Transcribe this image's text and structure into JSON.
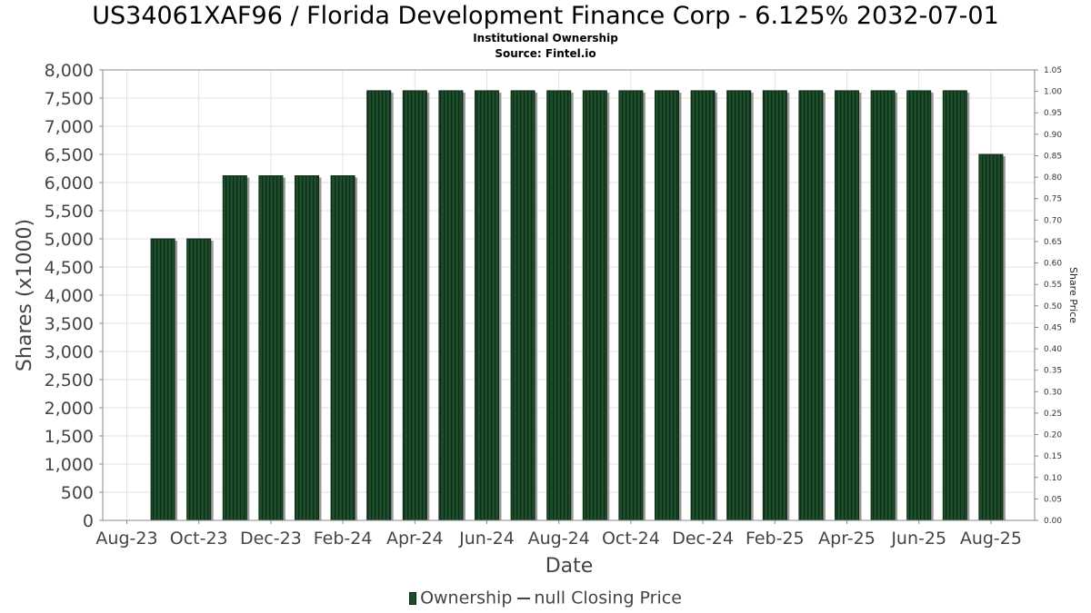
{
  "title": "US34061XAF96 / Florida Development Finance Corp - 6.125% 2032-07-01",
  "subtitle": "Institutional Ownership",
  "source": "Source: Fintel.io",
  "legend": {
    "ownership": "Ownership",
    "closing_price": "null Closing Price"
  },
  "colors": {
    "bar_fill": "#1e4d2b",
    "bar_stripe": "#0f2e18",
    "bar_shadow": "#9a9a9a",
    "grid": "#e2e2e2"
  },
  "chart_data": {
    "type": "bar",
    "xlabel": "Date",
    "ylabel": "Shares (x1000)",
    "y2label": "Share Price",
    "ylim": [
      0,
      8000
    ],
    "y2lim": [
      0,
      1.05
    ],
    "yticks": [
      "0",
      "500",
      "1,000",
      "1,500",
      "2,000",
      "2,500",
      "3,000",
      "3,500",
      "4,000",
      "4,500",
      "5,000",
      "5,500",
      "6,000",
      "6,500",
      "7,000",
      "7,500",
      "8,000"
    ],
    "y2ticks": [
      "0.00",
      "0.05",
      "0.10",
      "0.15",
      "0.20",
      "0.25",
      "0.30",
      "0.35",
      "0.40",
      "0.45",
      "0.50",
      "0.55",
      "0.60",
      "0.65",
      "0.70",
      "0.75",
      "0.80",
      "0.85",
      "0.90",
      "0.95",
      "1.00",
      "1.05"
    ],
    "xticks": [
      "Aug-23",
      "Oct-23",
      "Dec-23",
      "Feb-24",
      "Apr-24",
      "Jun-24",
      "Aug-24",
      "Oct-24",
      "Dec-24",
      "Feb-25",
      "Apr-25",
      "Jun-25",
      "Aug-25"
    ],
    "grid": true,
    "legend_position": "bottom",
    "series": [
      {
        "name": "Ownership",
        "values": [
          0,
          5000,
          5000,
          6120,
          6120,
          6120,
          6120,
          7630,
          7630,
          7630,
          7630,
          7630,
          7630,
          7630,
          7630,
          7630,
          7630,
          7630,
          7630,
          7630,
          7630,
          7630,
          7630,
          7630,
          6500
        ]
      }
    ]
  }
}
